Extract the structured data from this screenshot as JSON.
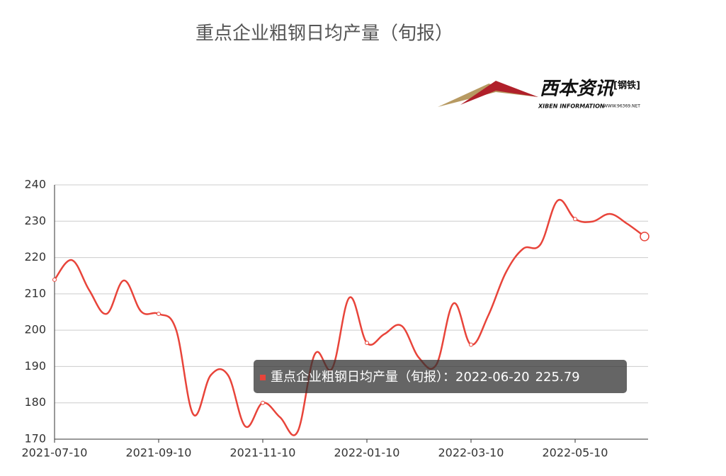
{
  "chart_data": {
    "type": "line",
    "title": "重点企业粗钢日均产量（旬报）",
    "categories": [
      "2021-07-10",
      null,
      null,
      null,
      null,
      null,
      "2021-09-10",
      null,
      null,
      null,
      null,
      null,
      "2021-11-10",
      null,
      null,
      null,
      null,
      null,
      "2022-01-10",
      null,
      null,
      null,
      null,
      null,
      "2022-03-10",
      null,
      null,
      null,
      null,
      null,
      "2022-05-10",
      null,
      null,
      null,
      "2022-06-20"
    ],
    "series": [
      {
        "name": "重点企业粗钢日均产量（旬报）",
        "color": "#e8443a",
        "values": [
          213.9,
          219.3,
          211,
          204.5,
          213.7,
          205.1,
          204.5,
          200.2,
          176.8,
          187.6,
          187.6,
          173.5,
          180,
          176,
          172,
          193.4,
          189.5,
          209,
          196.5,
          198.9,
          201.2,
          192.4,
          190.5,
          207.4,
          196,
          204.1,
          215.8,
          222.4,
          223.6,
          235.7,
          230.6,
          229.9,
          232,
          229.3,
          225.79
        ]
      }
    ],
    "ylim": [
      170,
      240
    ],
    "yticks": [
      170,
      180,
      190,
      200,
      210,
      220,
      230,
      240
    ],
    "grid": true,
    "tooltip": {
      "separator": "："
    },
    "logo": {
      "name": "西本资讯",
      "tag": "[钢铁]",
      "english": "XIBEN INFORMATION",
      "url": "WWW.96369.NET"
    }
  }
}
